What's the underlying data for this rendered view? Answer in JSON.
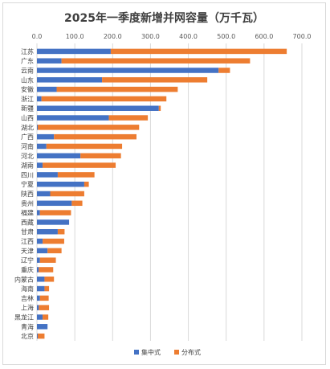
{
  "chart_data": {
    "type": "bar",
    "orientation": "horizontal",
    "stacked": true,
    "title": "2025年一季度新增并网容量（万千瓦）",
    "xlim": [
      0,
      700
    ],
    "xticks": [
      "0.0",
      "100.0",
      "200.0",
      "300.0",
      "400.0",
      "500.0",
      "600.0",
      "700.0"
    ],
    "grid": true,
    "legend_position": "bottom",
    "categories": [
      "江苏",
      "广东",
      "云南",
      "山东",
      "安徽",
      "浙江",
      "新疆",
      "山西",
      "湖北",
      "广西",
      "河南",
      "河北",
      "湖南",
      "四川",
      "宁夏",
      "陕西",
      "贵州",
      "福建",
      "西藏",
      "甘肃",
      "江西",
      "天津",
      "辽宁",
      "重庆",
      "内蒙古",
      "海南",
      "吉林",
      "上海",
      "黑龙江",
      "青海",
      "北京"
    ],
    "series": [
      {
        "name": "集中式",
        "color": "#4472C4",
        "values": [
          195,
          65,
          480,
          172,
          52,
          12,
          322,
          190,
          2,
          45,
          25,
          115,
          15,
          55,
          125,
          35,
          92,
          8,
          85,
          55,
          15,
          28,
          8,
          5,
          20,
          20,
          8,
          5,
          15,
          28,
          2
        ]
      },
      {
        "name": "分布式",
        "color": "#ED7D31",
        "values": [
          465,
          498,
          30,
          278,
          320,
          330,
          5,
          103,
          268,
          218,
          200,
          107,
          193,
          97,
          12,
          90,
          28,
          82,
          0,
          18,
          57,
          37,
          42,
          38,
          25,
          12,
          23,
          27,
          15,
          0,
          18
        ]
      }
    ]
  }
}
